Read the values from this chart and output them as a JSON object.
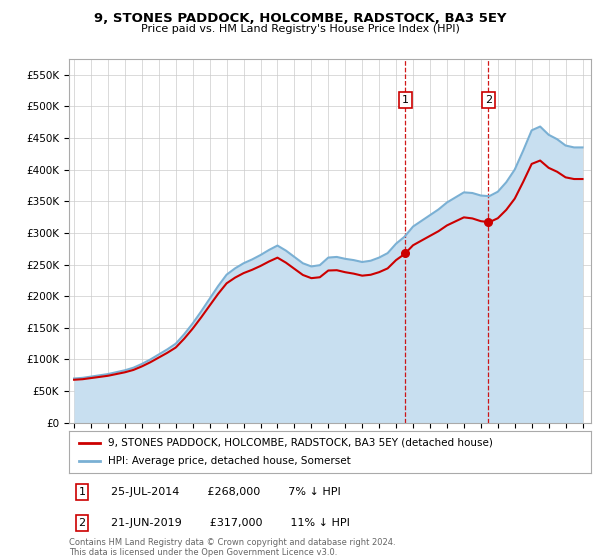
{
  "title": "9, STONES PADDOCK, HOLCOMBE, RADSTOCK, BA3 5EY",
  "subtitle": "Price paid vs. HM Land Registry's House Price Index (HPI)",
  "ylim": [
    0,
    575000
  ],
  "yticks": [
    0,
    50000,
    100000,
    150000,
    200000,
    250000,
    300000,
    350000,
    400000,
    450000,
    500000,
    550000
  ],
  "xlim_start": 1994.7,
  "xlim_end": 2025.5,
  "background_color": "#ffffff",
  "grid_color": "#cccccc",
  "hpi_color": "#7ab0d4",
  "hpi_fill_color": "#c8dff0",
  "property_color": "#cc0000",
  "marker1_x": 2014.55,
  "marker1_y": 268000,
  "marker1_label": "1",
  "marker1_date": "25-JUL-2014",
  "marker1_price": "£268,000",
  "marker1_hpi": "7% ↓ HPI",
  "marker2_x": 2019.45,
  "marker2_y": 317000,
  "marker2_label": "2",
  "marker2_date": "21-JUN-2019",
  "marker2_price": "£317,000",
  "marker2_hpi": "11% ↓ HPI",
  "legend_property": "9, STONES PADDOCK, HOLCOMBE, RADSTOCK, BA3 5EY (detached house)",
  "legend_hpi": "HPI: Average price, detached house, Somerset",
  "footer": "Contains HM Land Registry data © Crown copyright and database right 2024.\nThis data is licensed under the Open Government Licence v3.0.",
  "hpi_years": [
    1995,
    1995.5,
    1996,
    1996.5,
    1997,
    1997.5,
    1998,
    1998.5,
    1999,
    1999.5,
    2000,
    2000.5,
    2001,
    2001.5,
    2002,
    2002.5,
    2003,
    2003.5,
    2004,
    2004.5,
    2005,
    2005.5,
    2006,
    2006.5,
    2007,
    2007.5,
    2008,
    2008.5,
    2009,
    2009.5,
    2010,
    2010.5,
    2011,
    2011.5,
    2012,
    2012.5,
    2013,
    2013.5,
    2014,
    2014.5,
    2015,
    2015.5,
    2016,
    2016.5,
    2017,
    2017.5,
    2018,
    2018.5,
    2019,
    2019.5,
    2020,
    2020.5,
    2021,
    2021.5,
    2022,
    2022.5,
    2023,
    2023.5,
    2024,
    2024.5,
    2025
  ],
  "hpi_values": [
    70000,
    71000,
    73000,
    75000,
    77000,
    80000,
    83000,
    87000,
    93000,
    100000,
    108000,
    116000,
    125000,
    140000,
    157000,
    176000,
    196000,
    216000,
    234000,
    244000,
    252000,
    258000,
    265000,
    273000,
    280000,
    272000,
    262000,
    252000,
    247000,
    249000,
    261000,
    262000,
    259000,
    257000,
    254000,
    256000,
    261000,
    268000,
    283000,
    294000,
    310000,
    319000,
    328000,
    337000,
    348000,
    356000,
    364000,
    363000,
    359000,
    358000,
    365000,
    380000,
    400000,
    430000,
    462000,
    468000,
    455000,
    448000,
    438000,
    435000,
    435000
  ],
  "xticks": [
    1995,
    1996,
    1997,
    1998,
    1999,
    2000,
    2001,
    2002,
    2003,
    2004,
    2005,
    2006,
    2007,
    2008,
    2009,
    2010,
    2011,
    2012,
    2013,
    2014,
    2015,
    2016,
    2017,
    2018,
    2019,
    2020,
    2021,
    2022,
    2023,
    2024,
    2025
  ]
}
